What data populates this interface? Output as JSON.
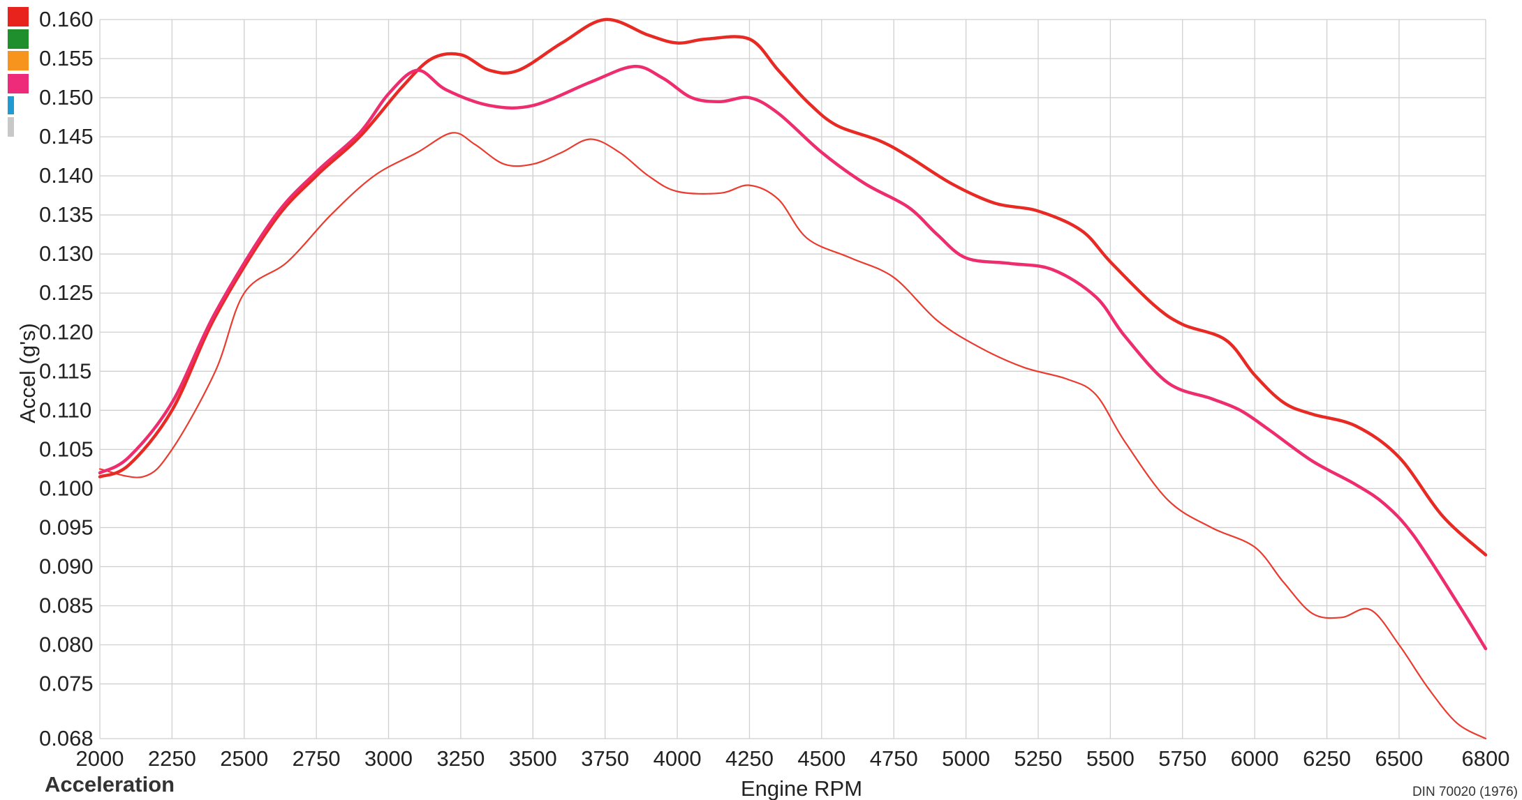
{
  "chart_data": {
    "type": "line",
    "title": "",
    "xlabel": "Engine RPM",
    "ylabel": "Accel (g's)",
    "xlim": [
      2000,
      6800
    ],
    "ylim": [
      0.068,
      0.16
    ],
    "grid": true,
    "x_ticks": [
      "2000",
      "2250",
      "2500",
      "2750",
      "3000",
      "3250",
      "3500",
      "3750",
      "4000",
      "4250",
      "4500",
      "4750",
      "5000",
      "5250",
      "5500",
      "5750",
      "6000",
      "6250",
      "6500",
      "6800"
    ],
    "y_ticks": [
      "0.160",
      "0.155",
      "0.150",
      "0.145",
      "0.140",
      "0.135",
      "0.130",
      "0.125",
      "0.120",
      "0.115",
      "0.110",
      "0.105",
      "0.100",
      "0.095",
      "0.090",
      "0.085",
      "0.080",
      "0.075",
      "0.068"
    ],
    "legend_swatches": [
      "#e8231d",
      "#1f8f2d",
      "#f7941d",
      "#ee2a7b",
      "#1f9bd1",
      "#c8c8c8"
    ],
    "series": [
      {
        "color": "#e82a24",
        "width": 4.5,
        "points": [
          [
            2000,
            0.1015
          ],
          [
            2100,
            0.103
          ],
          [
            2250,
            0.11
          ],
          [
            2400,
            0.122
          ],
          [
            2600,
            0.134
          ],
          [
            2750,
            0.14
          ],
          [
            2900,
            0.145
          ],
          [
            3050,
            0.1515
          ],
          [
            3150,
            0.155
          ],
          [
            3250,
            0.1555
          ],
          [
            3350,
            0.1535
          ],
          [
            3450,
            0.1535
          ],
          [
            3600,
            0.157
          ],
          [
            3750,
            0.16
          ],
          [
            3900,
            0.158
          ],
          [
            4000,
            0.157
          ],
          [
            4100,
            0.1575
          ],
          [
            4250,
            0.1575
          ],
          [
            4350,
            0.1535
          ],
          [
            4450,
            0.1495
          ],
          [
            4550,
            0.1465
          ],
          [
            4700,
            0.1445
          ],
          [
            4800,
            0.1425
          ],
          [
            4950,
            0.139
          ],
          [
            5100,
            0.1365
          ],
          [
            5250,
            0.1355
          ],
          [
            5400,
            0.133
          ],
          [
            5500,
            0.129
          ],
          [
            5650,
            0.1235
          ],
          [
            5750,
            0.121
          ],
          [
            5900,
            0.119
          ],
          [
            6000,
            0.1145
          ],
          [
            6100,
            0.111
          ],
          [
            6200,
            0.1095
          ],
          [
            6350,
            0.108
          ],
          [
            6500,
            0.104
          ],
          [
            6650,
            0.0965
          ],
          [
            6800,
            0.0915
          ]
        ]
      },
      {
        "color": "#ee2d6f",
        "width": 4.5,
        "points": [
          [
            2000,
            0.102
          ],
          [
            2100,
            0.104
          ],
          [
            2250,
            0.111
          ],
          [
            2400,
            0.1225
          ],
          [
            2600,
            0.1345
          ],
          [
            2750,
            0.1405
          ],
          [
            2900,
            0.1455
          ],
          [
            3000,
            0.1505
          ],
          [
            3100,
            0.1535
          ],
          [
            3200,
            0.151
          ],
          [
            3350,
            0.149
          ],
          [
            3500,
            0.149
          ],
          [
            3700,
            0.152
          ],
          [
            3850,
            0.154
          ],
          [
            3950,
            0.1525
          ],
          [
            4050,
            0.15
          ],
          [
            4150,
            0.1495
          ],
          [
            4250,
            0.15
          ],
          [
            4350,
            0.148
          ],
          [
            4500,
            0.143
          ],
          [
            4650,
            0.139
          ],
          [
            4800,
            0.136
          ],
          [
            4900,
            0.1325
          ],
          [
            5000,
            0.1295
          ],
          [
            5150,
            0.1288
          ],
          [
            5300,
            0.128
          ],
          [
            5450,
            0.1245
          ],
          [
            5550,
            0.1195
          ],
          [
            5700,
            0.1135
          ],
          [
            5850,
            0.1115
          ],
          [
            5950,
            0.11
          ],
          [
            6050,
            0.1075
          ],
          [
            6200,
            0.1035
          ],
          [
            6350,
            0.1005
          ],
          [
            6450,
            0.098
          ],
          [
            6550,
            0.094
          ],
          [
            6700,
            0.0855
          ],
          [
            6800,
            0.0795
          ]
        ]
      },
      {
        "color": "#ea3b2e",
        "width": 2.2,
        "points": [
          [
            2000,
            0.1025
          ],
          [
            2150,
            0.1015
          ],
          [
            2250,
            0.105
          ],
          [
            2400,
            0.115
          ],
          [
            2500,
            0.125
          ],
          [
            2650,
            0.129
          ],
          [
            2800,
            0.135
          ],
          [
            2950,
            0.14
          ],
          [
            3100,
            0.143
          ],
          [
            3220,
            0.1455
          ],
          [
            3300,
            0.144
          ],
          [
            3400,
            0.1415
          ],
          [
            3500,
            0.1415
          ],
          [
            3600,
            0.143
          ],
          [
            3700,
            0.1447
          ],
          [
            3800,
            0.143
          ],
          [
            3900,
            0.14
          ],
          [
            4000,
            0.138
          ],
          [
            4150,
            0.1378
          ],
          [
            4250,
            0.1388
          ],
          [
            4350,
            0.137
          ],
          [
            4450,
            0.132
          ],
          [
            4600,
            0.1295
          ],
          [
            4750,
            0.127
          ],
          [
            4900,
            0.1215
          ],
          [
            5050,
            0.118
          ],
          [
            5200,
            0.1155
          ],
          [
            5350,
            0.114
          ],
          [
            5450,
            0.112
          ],
          [
            5550,
            0.106
          ],
          [
            5700,
            0.0985
          ],
          [
            5850,
            0.095
          ],
          [
            6000,
            0.0925
          ],
          [
            6100,
            0.088
          ],
          [
            6200,
            0.084
          ],
          [
            6300,
            0.0835
          ],
          [
            6400,
            0.0845
          ],
          [
            6500,
            0.08
          ],
          [
            6600,
            0.0745
          ],
          [
            6700,
            0.07
          ],
          [
            6800,
            0.068
          ]
        ]
      }
    ]
  },
  "footer": {
    "left": "Acceleration",
    "right": "DIN 70020 (1976)"
  }
}
